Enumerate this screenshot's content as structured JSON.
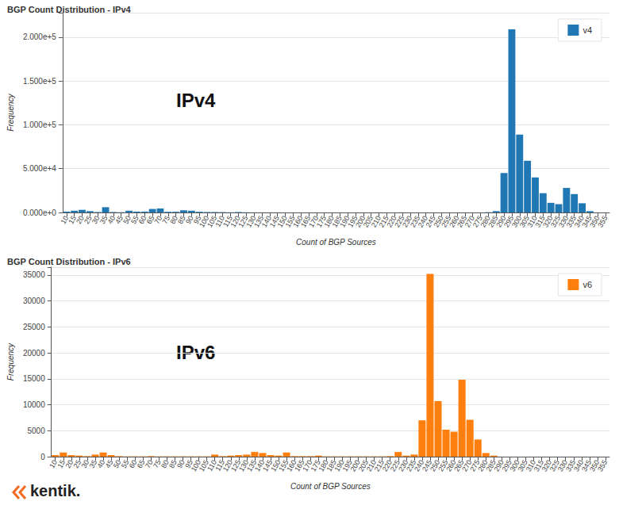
{
  "logo": "kentik.",
  "chart_data": [
    {
      "type": "bar",
      "title": "BGP Count Distribution - IPv4",
      "x_label": "Count of BGP Sources",
      "y_label": "Frequency",
      "annotations": [
        "IPv4"
      ],
      "legend": "top-right",
      "grid": true,
      "categories": [
        "10",
        "15",
        "20",
        "25",
        "30",
        "35",
        "40",
        "45",
        "50",
        "55",
        "60",
        "65",
        "70",
        "75",
        "80",
        "85",
        "90",
        "95",
        "100",
        "105",
        "110",
        "115",
        "120",
        "125",
        "130",
        "135",
        "140",
        "145",
        "150",
        "155",
        "160",
        "165",
        "170",
        "175",
        "180",
        "185",
        "190",
        "195",
        "200",
        "205",
        "210",
        "215",
        "220",
        "225",
        "230",
        "235",
        "240",
        "245",
        "250",
        "255",
        "260",
        "265",
        "270",
        "275",
        "280",
        "285",
        "290",
        "295",
        "300",
        "305",
        "310",
        "315",
        "320",
        "325",
        "330",
        "335",
        "340",
        "345",
        "350",
        "355"
      ],
      "series": [
        {
          "name": "v4",
          "color": "#1f77b4",
          "values": [
            1000,
            2000,
            3000,
            1500,
            500,
            6000,
            500,
            300,
            2000,
            1000,
            1000,
            4000,
            4500,
            800,
            800,
            2500,
            2000,
            800,
            500,
            500,
            400,
            200,
            500,
            200,
            100,
            100,
            100,
            100,
            0,
            0,
            0,
            0,
            0,
            0,
            0,
            0,
            0,
            0,
            0,
            0,
            100,
            0,
            0,
            100,
            0,
            0,
            0,
            0,
            0,
            0,
            0,
            0,
            0,
            0,
            300,
            1500,
            45000,
            209000,
            89000,
            59000,
            40000,
            22000,
            11000,
            9500,
            28000,
            21000,
            10500,
            1500,
            0,
            0
          ]
        }
      ],
      "ylim": [
        0,
        228000
      ],
      "yticks": [
        {
          "value": 0,
          "label": "0.000e+0"
        },
        {
          "value": 50000,
          "label": "5.000e+4"
        },
        {
          "value": 100000,
          "label": "1.000e+5"
        },
        {
          "value": 150000,
          "label": "1.500e+5"
        },
        {
          "value": 200000,
          "label": "2.000e+5"
        }
      ]
    },
    {
      "type": "bar",
      "title": "BGP Count Distribution - IPv6",
      "x_label": "Count of BGP Sources",
      "y_label": "Frequency",
      "annotations": [
        "IPv6"
      ],
      "legend": "top-right",
      "grid": true,
      "categories": [
        "10",
        "15",
        "20",
        "25",
        "30",
        "35",
        "40",
        "45",
        "50",
        "55",
        "60",
        "65",
        "70",
        "75",
        "80",
        "85",
        "90",
        "95",
        "100",
        "105",
        "110",
        "115",
        "120",
        "125",
        "130",
        "135",
        "140",
        "145",
        "150",
        "155",
        "160",
        "165",
        "170",
        "175",
        "180",
        "185",
        "190",
        "195",
        "200",
        "205",
        "210",
        "215",
        "220",
        "225",
        "230",
        "235",
        "240",
        "245",
        "250",
        "255",
        "260",
        "265",
        "270",
        "275",
        "280",
        "285",
        "290",
        "295",
        "300",
        "305",
        "310",
        "315",
        "320",
        "325",
        "330",
        "335",
        "340",
        "345",
        "350",
        "355"
      ],
      "series": [
        {
          "name": "v6",
          "color": "#ff7f0e",
          "values": [
            300,
            800,
            300,
            200,
            100,
            400,
            800,
            300,
            100,
            50,
            50,
            50,
            100,
            50,
            50,
            50,
            50,
            50,
            50,
            50,
            400,
            100,
            200,
            300,
            400,
            900,
            700,
            300,
            200,
            800,
            100,
            100,
            100,
            200,
            50,
            50,
            50,
            50,
            50,
            50,
            50,
            50,
            100,
            900,
            200,
            400,
            7000,
            35200,
            10700,
            5200,
            4800,
            14800,
            7100,
            3300,
            700,
            200,
            0,
            0,
            0,
            0,
            0,
            0,
            0,
            0,
            0,
            0,
            0,
            0,
            0,
            0
          ]
        }
      ],
      "ylim": [
        0,
        36500
      ],
      "yticks": [
        0,
        5000,
        10000,
        15000,
        20000,
        25000,
        30000,
        35000
      ]
    }
  ]
}
